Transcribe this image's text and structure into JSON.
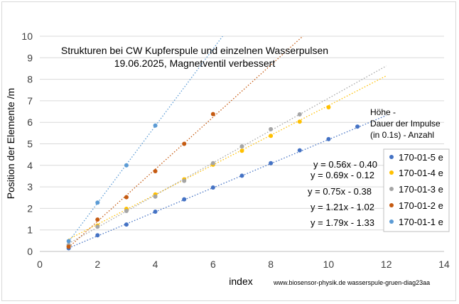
{
  "chart_data": {
    "type": "scatter",
    "title": "Strukturen bei CW Kupferspule und einzelnen Wasserpulsen",
    "subtitle": "19.06.2025, Magnetventil verbessert",
    "xlabel": "index",
    "ylabel": "Position der Elemente /m",
    "xlim": [
      0,
      14
    ],
    "ylim": [
      0,
      10
    ],
    "xticks": [
      "0",
      "2",
      "4",
      "6",
      "8",
      "10",
      "12",
      "14"
    ],
    "yticks": [
      "0",
      "1",
      "2",
      "3",
      "4",
      "5",
      "6",
      "7",
      "8",
      "9",
      "10"
    ],
    "grid": "horizontal",
    "legend_title": [
      "Höhe -",
      "Dauer der Impulse",
      "(in 0.1s) -  Anzahl"
    ],
    "legend_placement": "right",
    "trendline_style": "dotted",
    "series": [
      {
        "name": "170-01-5 e",
        "color": "#4472C4",
        "x": [
          1,
          2,
          3,
          4,
          5,
          6,
          7,
          8,
          9,
          10,
          11
        ],
        "y": [
          0.15,
          0.75,
          1.25,
          1.85,
          2.42,
          2.97,
          3.52,
          4.1,
          4.7,
          5.22,
          5.8
        ],
        "trend": {
          "slope": 0.56,
          "intercept": -0.4
        },
        "equation": "y = 0.56x - 0.40"
      },
      {
        "name": "170-01-4 e",
        "color": "#FFC000",
        "x": [
          1,
          2,
          3,
          4,
          5,
          6,
          7,
          8,
          9,
          10
        ],
        "y": [
          0.25,
          1.2,
          1.98,
          2.65,
          3.35,
          4.03,
          4.68,
          5.37,
          6.03,
          6.7
        ],
        "trend": {
          "slope": 0.69,
          "intercept": -0.12
        },
        "equation": "y = 0.69x - 0.12"
      },
      {
        "name": "170-01-3 e",
        "color": "#A5A5A5",
        "x": [
          1,
          2,
          3,
          4,
          5,
          6,
          7,
          8,
          9
        ],
        "y": [
          0.3,
          1.15,
          1.88,
          2.55,
          3.28,
          4.1,
          4.88,
          5.68,
          6.37
        ],
        "trend": {
          "slope": 0.75,
          "intercept": -0.38
        },
        "equation": "y = 0.75x - 0.38"
      },
      {
        "name": "170-01-2 e",
        "color": "#C55A11",
        "x": [
          1,
          2,
          3,
          4,
          5,
          6
        ],
        "y": [
          0.22,
          1.48,
          2.52,
          3.73,
          5.0,
          6.38
        ],
        "trend": {
          "slope": 1.21,
          "intercept": -1.02
        },
        "equation": "y = 1.21x - 1.02"
      },
      {
        "name": "170-01-1 e",
        "color": "#5B9BD5",
        "x": [
          1,
          2,
          3,
          4
        ],
        "y": [
          0.48,
          2.27,
          4.0,
          5.85
        ],
        "trend": {
          "slope": 1.79,
          "intercept": -1.33
        },
        "equation": "y = 1.79x - 1.33"
      }
    ],
    "footer": "www.biosensor-physik.de  wasserspule-gruen-diag23aa"
  }
}
